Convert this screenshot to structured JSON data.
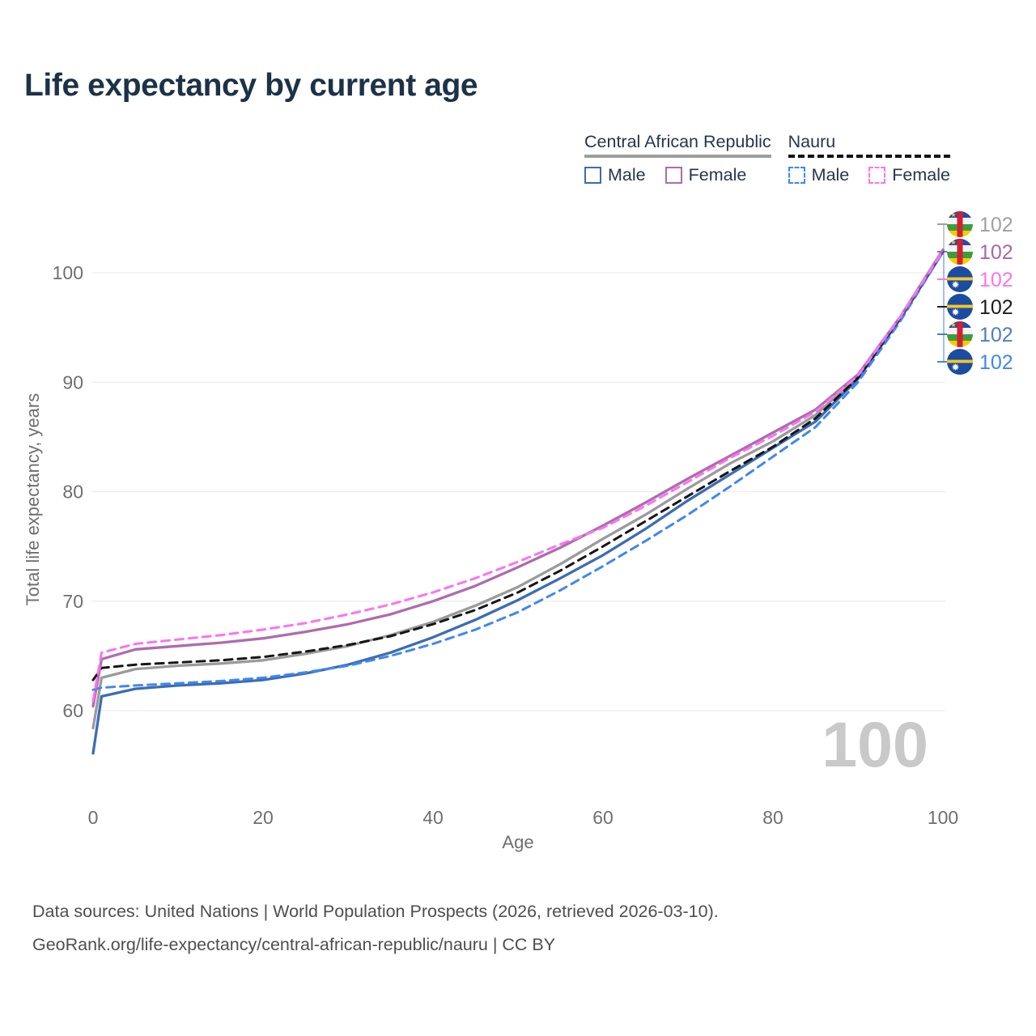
{
  "title": "Life expectancy by current age",
  "legend": {
    "groups": [
      {
        "country": "Central African Republic",
        "line_style": "solid",
        "underline_color": "#9e9e9e",
        "items": [
          {
            "label": "Male",
            "color": "#3c6cb4"
          },
          {
            "label": "Female",
            "color": "#ae6cae"
          }
        ]
      },
      {
        "country": "Nauru",
        "line_style": "dashed",
        "underline_color": "#141414",
        "items": [
          {
            "label": "Male",
            "color": "#3f87f2"
          },
          {
            "label": "Female",
            "color": "#fb74ef"
          }
        ]
      }
    ]
  },
  "watermark": "100",
  "chart_data": {
    "type": "line",
    "title": "Life expectancy by current age",
    "xlabel": "Age",
    "ylabel": "Total life expectancy, years",
    "x_ticks": [
      0,
      20,
      40,
      60,
      80,
      100
    ],
    "y_ticks": [
      60,
      70,
      80,
      90,
      100
    ],
    "xlim": [
      0,
      100
    ],
    "ylim": [
      55,
      103
    ],
    "grid": "horizontal",
    "legend_position": "top-right",
    "x": [
      0,
      1,
      5,
      10,
      15,
      20,
      25,
      30,
      35,
      40,
      45,
      50,
      55,
      60,
      65,
      70,
      75,
      80,
      85,
      90,
      95,
      100
    ],
    "series": [
      {
        "id": "car-total",
        "name": "Central African Republic — Both sexes",
        "flag": "car",
        "style": "solid",
        "color": "#9b9b9b",
        "label_color": "#a0a0a0",
        "end_label": "102",
        "values": [
          58.4,
          63.0,
          63.8,
          64.1,
          64.3,
          64.6,
          65.2,
          65.9,
          66.9,
          68.1,
          69.6,
          71.3,
          73.4,
          75.7,
          77.9,
          80.3,
          82.6,
          84.6,
          87.0,
          90.5,
          95.9,
          102.0
        ]
      },
      {
        "id": "car-female",
        "name": "Central African Republic — Female",
        "flag": "car",
        "style": "solid",
        "color": "#ae6cae",
        "label_color": "#a867a8",
        "end_label": "102",
        "values": [
          60.4,
          64.7,
          65.6,
          65.9,
          66.2,
          66.6,
          67.2,
          67.9,
          68.8,
          70.0,
          71.4,
          73.1,
          74.9,
          76.9,
          79.0,
          81.2,
          83.3,
          85.4,
          87.5,
          90.7,
          96.0,
          102.1
        ]
      },
      {
        "id": "nauru-female",
        "name": "Nauru — Female",
        "flag": "nauru",
        "style": "dashed",
        "color": "#fb74ef",
        "label_color": "#fb74ef",
        "end_label": "102",
        "values": [
          60.9,
          65.3,
          66.1,
          66.5,
          66.9,
          67.4,
          68.0,
          68.8,
          69.7,
          70.8,
          72.1,
          73.6,
          75.2,
          76.7,
          78.7,
          80.9,
          83.1,
          85.1,
          87.3,
          90.6,
          96.0,
          102.0
        ]
      },
      {
        "id": "nauru-total",
        "name": "Nauru — Both sexes",
        "flag": "nauru",
        "style": "dashed",
        "color": "#161616",
        "label_color": "#1d1d1d",
        "end_label": "102",
        "values": [
          62.8,
          63.9,
          64.2,
          64.4,
          64.6,
          64.9,
          65.4,
          66.0,
          66.8,
          67.9,
          69.2,
          70.8,
          72.8,
          75.0,
          77.3,
          79.6,
          81.9,
          84.1,
          86.7,
          90.4,
          95.9,
          102.0
        ]
      },
      {
        "id": "car-male",
        "name": "Central African Republic — Male",
        "flag": "car",
        "style": "solid",
        "color": "#3c6cb4",
        "label_color": "#4f7cc0",
        "end_label": "102",
        "values": [
          56.1,
          61.3,
          62.0,
          62.3,
          62.5,
          62.8,
          63.4,
          64.2,
          65.3,
          66.7,
          68.3,
          70.1,
          72.1,
          74.2,
          76.6,
          79.2,
          81.6,
          84.0,
          86.4,
          90.3,
          95.8,
          101.9
        ]
      },
      {
        "id": "nauru-male",
        "name": "Nauru — Male",
        "flag": "nauru",
        "style": "dashed",
        "color": "#3f87f2",
        "label_color": "#3f87f2",
        "end_label": "102",
        "values": [
          61.9,
          62.1,
          62.3,
          62.5,
          62.7,
          63.0,
          63.5,
          64.1,
          65.0,
          66.1,
          67.4,
          69.0,
          71.0,
          73.2,
          75.5,
          77.9,
          80.5,
          83.2,
          85.9,
          90.0,
          95.6,
          101.9
        ]
      }
    ]
  },
  "footer": {
    "line1": "Data sources: United Nations | World Population Prospects (2026, retrieved 2026-03-10).",
    "line2": "GeoRank.org/life-expectancy/central-african-republic/nauru | CC BY"
  }
}
